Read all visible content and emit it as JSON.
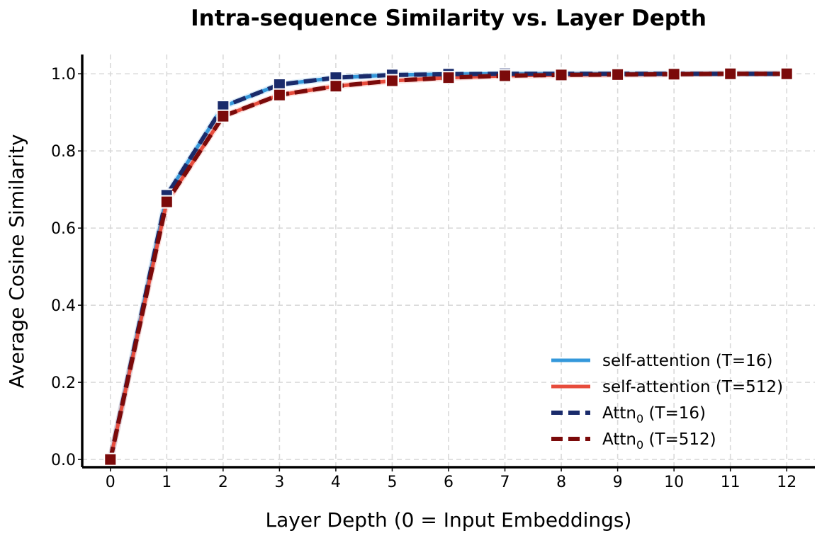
{
  "chart_data": {
    "type": "line",
    "title": "Intra-sequence Similarity vs. Layer Depth",
    "xlabel": "Layer Depth (0 = Input Embeddings)",
    "ylabel": "Average Cosine Similarity",
    "x": [
      0,
      1,
      2,
      3,
      4,
      5,
      6,
      7,
      8,
      9,
      10,
      11,
      12
    ],
    "xlim": [
      -0.5,
      12.5
    ],
    "ylim": [
      -0.02,
      1.05
    ],
    "yticks": [
      "0.0",
      "0.2",
      "0.4",
      "0.6",
      "0.8",
      "1.0"
    ],
    "grid": true,
    "legend_position": "lower-right",
    "series": [
      {
        "name": "self-attention (T=16)",
        "label_prefix": "self-attention",
        "label_sub": "",
        "label_suffix": " (T=16)",
        "color": "#3498db",
        "style": "solid",
        "values": [
          0.0,
          0.685,
          0.915,
          0.972,
          0.99,
          0.997,
          0.999,
          1.0,
          1.0,
          1.0,
          1.0,
          1.0,
          1.0
        ]
      },
      {
        "name": "self-attention (T=512)",
        "label_prefix": "self-attention",
        "label_sub": "",
        "label_suffix": " (T=512)",
        "color": "#e74c3c",
        "style": "solid",
        "values": [
          0.0,
          0.668,
          0.89,
          0.945,
          0.968,
          0.982,
          0.99,
          0.995,
          0.997,
          0.998,
          0.999,
          1.0,
          1.0
        ]
      },
      {
        "name": "Attn0 (T=16)",
        "label_prefix": "Attn",
        "label_sub": "0",
        "label_suffix": " (T=16)",
        "color": "#1a2b6b",
        "style": "dashed",
        "values": [
          0.0,
          0.685,
          0.915,
          0.972,
          0.99,
          0.997,
          0.999,
          1.0,
          1.0,
          1.0,
          1.0,
          1.0,
          1.0
        ]
      },
      {
        "name": "Attn0 (T=512)",
        "label_prefix": "Attn",
        "label_sub": "0",
        "label_suffix": " (T=512)",
        "color": "#7b0a0a",
        "style": "dashed",
        "values": [
          0.0,
          0.668,
          0.89,
          0.945,
          0.968,
          0.982,
          0.99,
          0.995,
          0.997,
          0.998,
          0.999,
          1.0,
          1.0
        ]
      }
    ]
  }
}
